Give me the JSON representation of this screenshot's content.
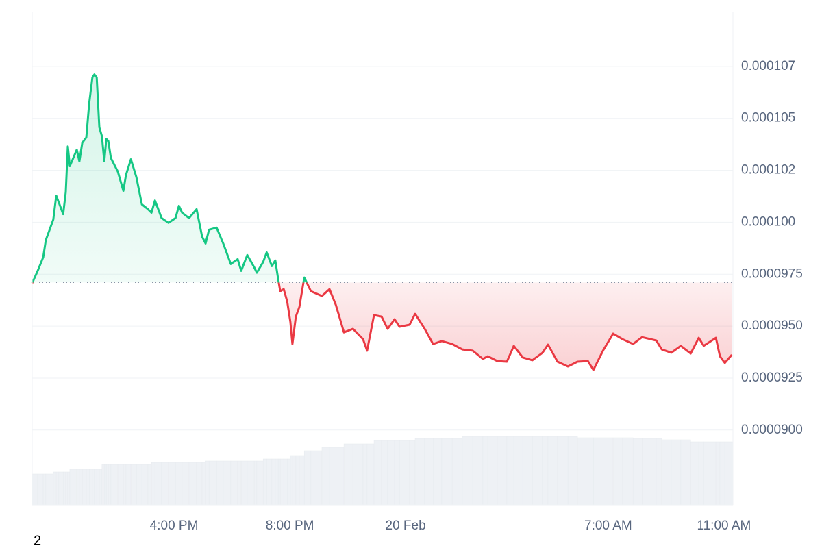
{
  "chart_data": {
    "type": "line",
    "color_up": "#16c784",
    "color_down": "#ea3943",
    "baseline": 9.71e-05,
    "grid": true,
    "xlim": [
      -12.9,
      11.31
    ],
    "xticks": [
      {
        "value": -8,
        "label": "4:00 PM"
      },
      {
        "value": -4,
        "label": "8:00 PM"
      },
      {
        "value": 0,
        "label": "20 Feb"
      },
      {
        "value": 7,
        "label": "7:00 AM"
      },
      {
        "value": 11,
        "label": "11:00 AM"
      }
    ],
    "ylim": [
      8.64e-05,
      0.0001101
    ],
    "yticks": [
      {
        "value": 9e-05,
        "label": "0.0000900"
      },
      {
        "value": 9.25e-05,
        "label": "0.0000925"
      },
      {
        "value": 9.5e-05,
        "label": "0.0000950"
      },
      {
        "value": 9.75e-05,
        "label": "0.0000975"
      },
      {
        "value": 0.0001,
        "label": "0.000100"
      },
      {
        "value": 0.0001025,
        "label": "0.000102"
      },
      0.000105,
      {
        "value": 0.0001075,
        "label": "0.000107"
      }
    ],
    "x": [
      -12.9,
      -12.71,
      -12.52,
      -12.43,
      -12.17,
      -12.07,
      -11.98,
      -11.83,
      -11.74,
      -11.67,
      -11.6,
      -11.36,
      -11.27,
      -11.17,
      -11.03,
      -10.93,
      -10.82,
      -10.75,
      -10.67,
      -10.58,
      -10.49,
      -10.41,
      -10.34,
      -10.27,
      -10.18,
      -9.94,
      -9.75,
      -9.66,
      -9.49,
      -9.3,
      -9.11,
      -8.9,
      -8.78,
      -8.66,
      -8.43,
      -8.19,
      -7.95,
      -7.83,
      -7.72,
      -7.48,
      -7.22,
      -7.03,
      -6.91,
      -6.79,
      -6.53,
      -6.3,
      -6.04,
      -5.8,
      -5.68,
      -5.47,
      -5.23,
      -5.14,
      -4.92,
      -4.8,
      -4.62,
      -4.5,
      -4.4,
      -4.33,
      -4.21,
      -4.09,
      -3.98,
      -3.91,
      -3.79,
      -3.67,
      -3.5,
      -3.27,
      -2.89,
      -2.63,
      -2.41,
      -2.13,
      -1.82,
      -1.47,
      -1.33,
      -1.09,
      -0.83,
      -0.62,
      -0.38,
      -0.21,
      0.14,
      0.33,
      0.66,
      0.95,
      1.25,
      1.61,
      1.96,
      2.32,
      2.67,
      2.84,
      3.17,
      3.5,
      3.74,
      4.05,
      4.38,
      4.73,
      4.92,
      5.25,
      5.61,
      5.94,
      6.3,
      6.49,
      6.82,
      7.17,
      7.5,
      7.86,
      8.17,
      8.66,
      8.85,
      9.18,
      9.51,
      9.85,
      10.13,
      10.3,
      10.72,
      10.86,
      11.03,
      11.27
    ],
    "series": [
      {
        "values": [
          9.707e-05,
          9.766e-05,
          9.832e-05,
          9.914e-05,
          0.00010013,
          0.00010128,
          0.00010095,
          0.00010039,
          0.00010145,
          0.00010365,
          0.0001027,
          0.00010349,
          0.00010293,
          0.00010382,
          0.00010408,
          0.00010572,
          0.00010697,
          0.00010711,
          0.00010697,
          0.00010457,
          0.00010414,
          0.00010293,
          0.00010401,
          0.00010391,
          0.00010309,
          0.00010243,
          0.00010151,
          0.00010227,
          0.00010303,
          0.00010217,
          0.00010086,
          0.00010063,
          0.00010046,
          0.00010105,
          0.0001002,
          9.997e-05,
          0.0001002,
          0.00010079,
          0.00010046,
          0.0001002,
          0.00010063,
          9.931e-05,
          9.898e-05,
          9.964e-05,
          9.974e-05,
          9.898e-05,
          9.799e-05,
          9.822e-05,
          9.766e-05,
          9.842e-05,
          9.783e-05,
          9.757e-05,
          9.809e-05,
          9.855e-05,
          9.789e-05,
          9.816e-05,
          9.724e-05,
          9.668e-05,
          9.678e-05,
          9.618e-05,
          9.52e-05,
          9.414e-05,
          9.546e-05,
          9.592e-05,
          9.734e-05,
          9.668e-05,
          9.645e-05,
          9.678e-05,
          9.602e-05,
          9.47e-05,
          9.487e-05,
          9.437e-05,
          9.382e-05,
          9.553e-05,
          9.546e-05,
          9.487e-05,
          9.533e-05,
          9.497e-05,
          9.507e-05,
          9.559e-05,
          9.487e-05,
          9.414e-05,
          9.428e-05,
          9.414e-05,
          9.388e-05,
          9.382e-05,
          9.342e-05,
          9.355e-05,
          9.332e-05,
          9.329e-05,
          9.405e-05,
          9.349e-05,
          9.336e-05,
          9.372e-05,
          9.411e-05,
          9.329e-05,
          9.306e-05,
          9.329e-05,
          9.332e-05,
          9.289e-05,
          9.382e-05,
          9.464e-05,
          9.437e-05,
          9.414e-05,
          9.447e-05,
          9.431e-05,
          9.388e-05,
          9.372e-05,
          9.405e-05,
          9.368e-05,
          9.444e-05,
          9.405e-05,
          9.444e-05,
          9.355e-05,
          9.323e-05,
          9.362e-05
        ]
      }
    ],
    "volume_color": "#eef1f5",
    "volume_ylim": [
      0,
      100
    ],
    "volume": [
      45,
      45,
      45,
      45,
      48,
      48,
      48,
      48,
      48,
      48,
      52,
      52,
      52,
      52,
      52,
      52,
      52,
      52,
      52,
      52,
      59,
      59,
      59,
      59,
      59,
      59,
      59,
      59,
      59,
      59,
      59,
      59,
      62,
      62,
      62,
      62,
      62,
      62,
      62,
      62,
      62,
      62,
      64,
      64,
      64,
      64,
      64,
      64,
      64,
      64,
      64,
      64,
      67,
      67,
      67,
      67,
      67,
      67,
      67,
      67,
      72,
      72,
      72,
      72,
      79,
      79,
      84,
      84,
      84,
      89,
      89,
      89,
      89,
      94,
      94,
      94,
      94,
      94,
      94,
      97,
      97,
      97,
      97,
      97,
      100,
      100,
      100,
      100,
      100,
      100,
      100,
      100,
      100,
      100,
      100,
      100,
      100,
      98,
      98,
      98,
      98,
      98,
      98,
      97,
      97,
      97,
      95,
      95,
      95,
      92,
      92,
      92,
      92,
      92,
      92,
      92
    ],
    "footer_label": "2"
  }
}
